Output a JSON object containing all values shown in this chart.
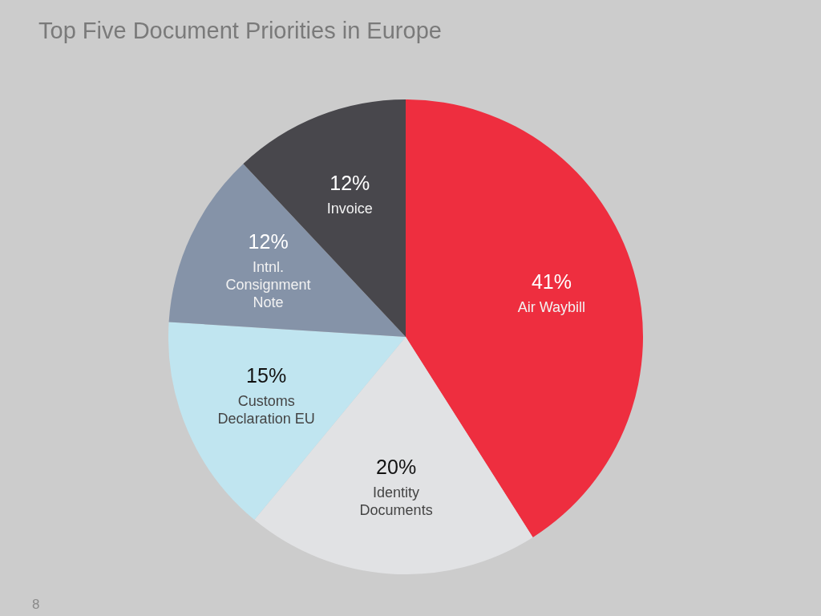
{
  "chart_data": {
    "type": "pie",
    "title": "Top Five Document Priorities in Europe",
    "categories": [
      "Air Waybill",
      "Identity Documents",
      "Customs Declaration EU",
      "Intnl. Consignment Note",
      "Invoice"
    ],
    "values": [
      41,
      20,
      15,
      12,
      12
    ],
    "value_labels": [
      "41%",
      "20%",
      "15%",
      "12%",
      "12%"
    ],
    "colors": [
      "#ee2e3f",
      "#e1e2e4",
      "#c0e5f0",
      "#8593a8",
      "#48474c"
    ],
    "legend": false,
    "annotations": [
      "8"
    ]
  }
}
